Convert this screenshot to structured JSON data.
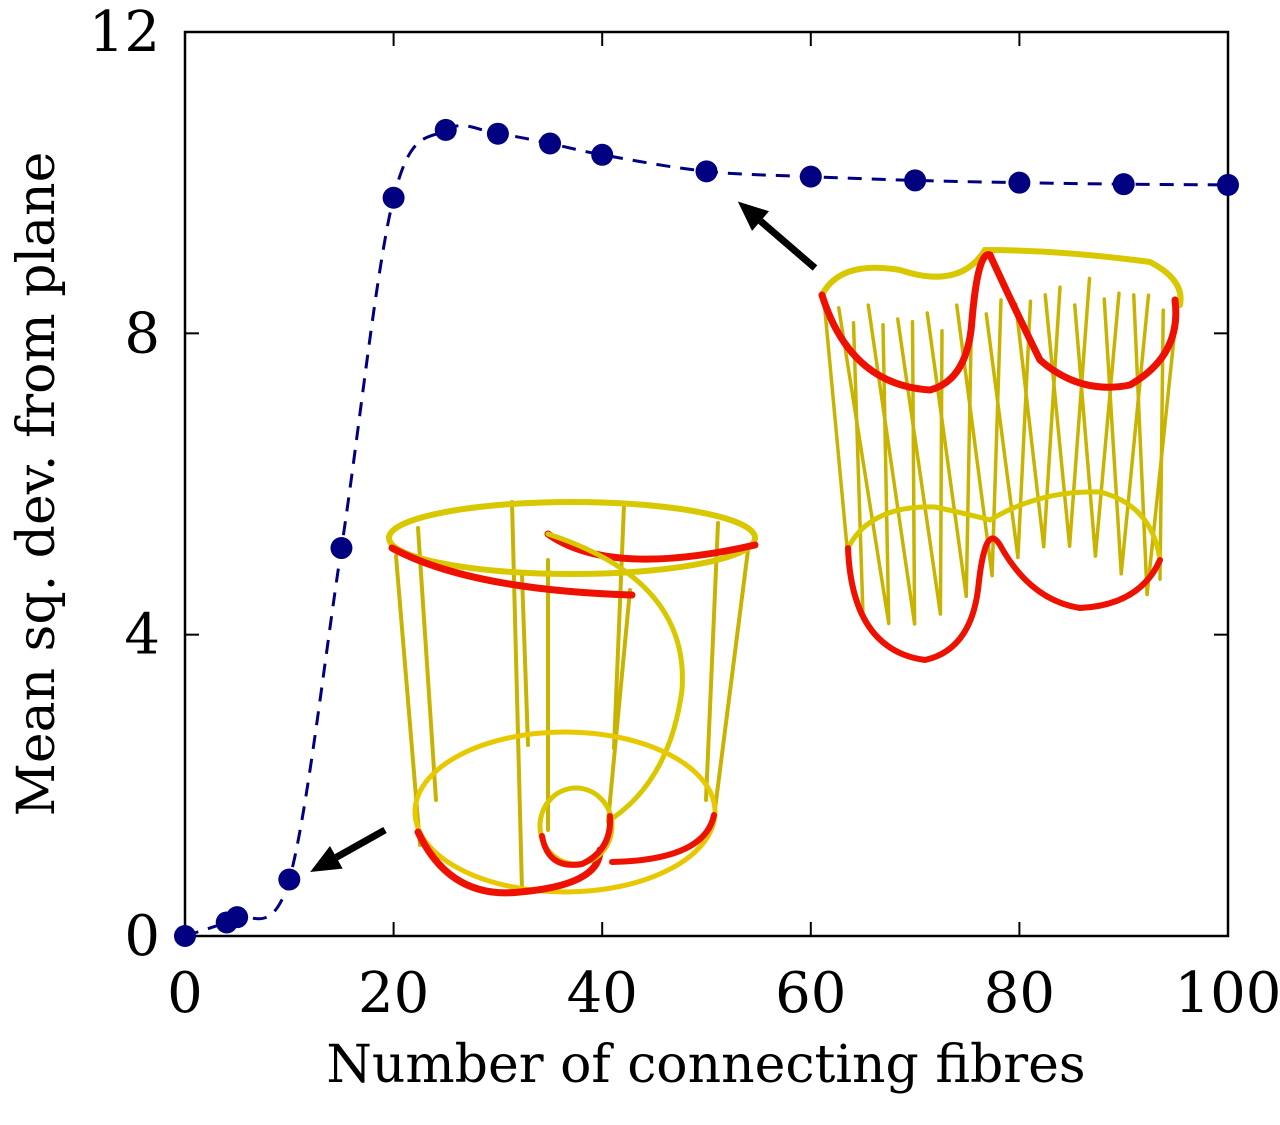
{
  "chart_data": {
    "type": "scatter",
    "xlabel": "Number of connecting fibres",
    "ylabel": "Mean sq. dev. from plane",
    "xlim": [
      0,
      100
    ],
    "ylim": [
      0,
      12
    ],
    "x_ticks": [
      0,
      20,
      40,
      60,
      80,
      100
    ],
    "y_ticks": [
      0,
      4,
      8,
      12
    ],
    "grid": false,
    "legend": "none",
    "series": [
      {
        "marker_color": "#000080",
        "line_style": "dashed",
        "x": [
          0,
          4,
          5,
          10,
          15,
          20,
          25,
          30,
          35,
          40,
          50,
          60,
          70,
          80,
          90,
          100
        ],
        "y": [
          0.0,
          0.18,
          0.25,
          0.75,
          5.15,
          9.8,
          10.7,
          10.65,
          10.52,
          10.37,
          10.15,
          10.08,
          10.03,
          10.0,
          9.98,
          9.97
        ]
      }
    ],
    "annotations": [
      {
        "type": "arrow",
        "points_to": [
          12,
          0.85
        ],
        "inset": "low-fibre-structure"
      },
      {
        "type": "arrow",
        "points_to": [
          53,
          9.75
        ],
        "inset": "high-fibre-structure"
      }
    ]
  },
  "colors": {
    "markers": "#000080",
    "curve": "#000080",
    "fibre_yellow": "#d8d800",
    "fibre_red": "#ee1100",
    "arrow": "#000000"
  }
}
